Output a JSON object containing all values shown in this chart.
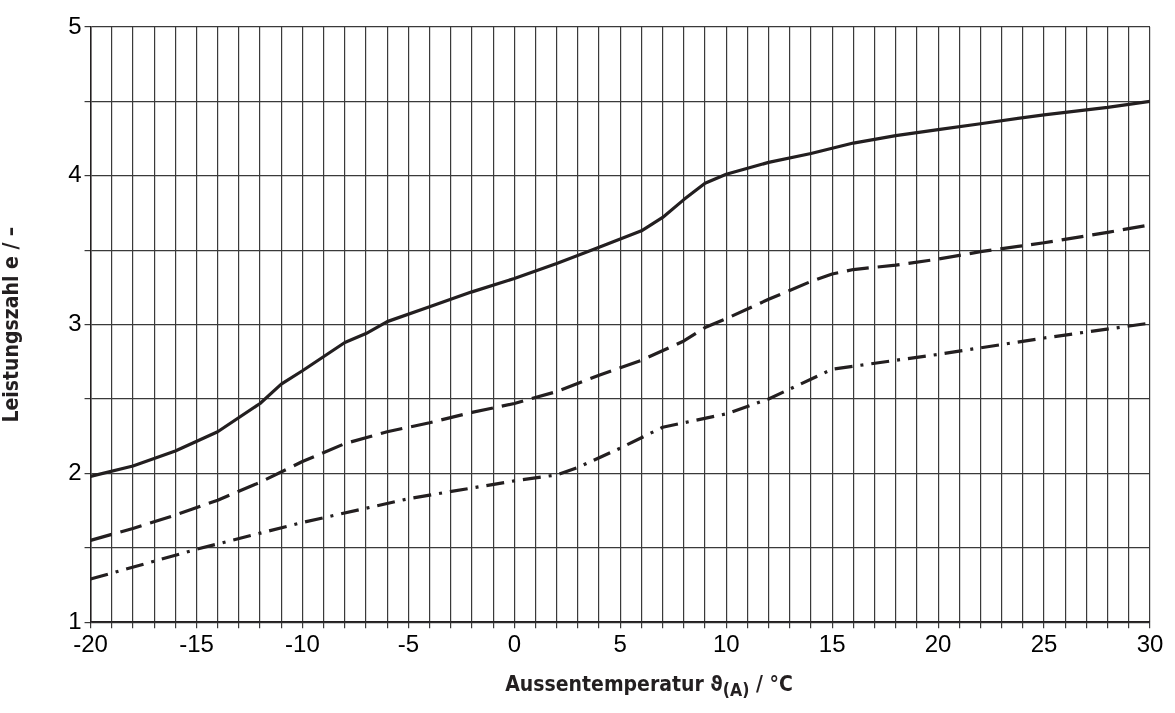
{
  "chart_data": {
    "type": "line",
    "xlabel": "Aussentemperatur ϑ$_{(A)}$ / °C",
    "ylabel": "Leistungszahl e / –",
    "series": [
      {
        "color": "#231f20",
        "line_style": "solid",
        "x": [
          -20,
          -18,
          -16,
          -14,
          -12,
          -11,
          -10,
          -8,
          -7,
          -6,
          -4,
          -2,
          0,
          2,
          4,
          6,
          7,
          8,
          9,
          10,
          12,
          14,
          16,
          18,
          20,
          22,
          25,
          28,
          30
        ],
        "values": [
          1.98,
          2.05,
          2.15,
          2.28,
          2.47,
          2.6,
          2.69,
          2.88,
          2.94,
          3.02,
          3.12,
          3.22,
          3.31,
          3.41,
          3.52,
          3.63,
          3.72,
          3.84,
          3.95,
          4.01,
          4.09,
          4.15,
          4.22,
          4.27,
          4.31,
          4.35,
          4.41,
          4.46,
          4.5
        ]
      },
      {
        "color": "#231f20",
        "line_style": "dashed",
        "x": [
          -20,
          -18,
          -16,
          -14,
          -12,
          -10,
          -8,
          -6,
          -4,
          -2,
          0,
          2,
          4,
          6,
          8,
          9,
          10,
          12,
          14,
          15,
          16,
          18,
          20,
          22,
          25,
          28,
          30
        ],
        "values": [
          1.55,
          1.63,
          1.72,
          1.82,
          1.94,
          2.08,
          2.2,
          2.28,
          2.34,
          2.41,
          2.47,
          2.55,
          2.66,
          2.76,
          2.89,
          2.98,
          3.04,
          3.17,
          3.29,
          3.34,
          3.37,
          3.4,
          3.44,
          3.49,
          3.55,
          3.62,
          3.67
        ]
      },
      {
        "color": "#231f20",
        "line_style": "dashdot",
        "x": [
          -20,
          -15,
          -10,
          -5,
          0,
          2,
          3,
          5,
          7,
          10,
          12,
          15,
          20,
          25,
          30
        ],
        "values": [
          1.29,
          1.49,
          1.67,
          1.83,
          1.95,
          1.99,
          2.04,
          2.17,
          2.31,
          2.4,
          2.5,
          2.7,
          2.8,
          2.91,
          3.01
        ]
      }
    ],
    "xlim": [
      -20,
      30
    ],
    "xticks": [
      -20,
      {
        "value": -19,
        "label": null
      },
      {
        "value": -18,
        "label": null
      },
      {
        "value": -17,
        "label": null
      },
      {
        "value": -16,
        "label": null
      },
      -15,
      {
        "value": -14,
        "label": null
      },
      {
        "value": -13,
        "label": null
      },
      {
        "value": -12,
        "label": null
      },
      {
        "value": -11,
        "label": null
      },
      -10,
      {
        "value": -9,
        "label": null
      },
      {
        "value": -8,
        "label": null
      },
      {
        "value": -7,
        "label": null
      },
      {
        "value": -6,
        "label": null
      },
      -5,
      {
        "value": -4,
        "label": null
      },
      {
        "value": -3,
        "label": null
      },
      {
        "value": -2,
        "label": null
      },
      {
        "value": -1,
        "label": null
      },
      0,
      {
        "value": 1,
        "label": null
      },
      {
        "value": 2,
        "label": null
      },
      {
        "value": 3,
        "label": null
      },
      {
        "value": 4,
        "label": null
      },
      5,
      {
        "value": 6,
        "label": null
      },
      {
        "value": 7,
        "label": null
      },
      {
        "value": 8,
        "label": null
      },
      {
        "value": 9,
        "label": null
      },
      10,
      {
        "value": 11,
        "label": null
      },
      {
        "value": 12,
        "label": null
      },
      {
        "value": 13,
        "label": null
      },
      {
        "value": 14,
        "label": null
      },
      15,
      {
        "value": 16,
        "label": null
      },
      {
        "value": 17,
        "label": null
      },
      {
        "value": 18,
        "label": null
      },
      {
        "value": 19,
        "label": null
      },
      20,
      {
        "value": 21,
        "label": null
      },
      {
        "value": 22,
        "label": null
      },
      {
        "value": 23,
        "label": null
      },
      {
        "value": 24,
        "label": null
      },
      25,
      {
        "value": 26,
        "label": null
      },
      {
        "value": 27,
        "label": null
      },
      {
        "value": 28,
        "label": null
      },
      {
        "value": 29,
        "label": null
      },
      30
    ],
    "ylim": [
      1,
      5
    ],
    "yticks": [
      1,
      {
        "value": 1.5,
        "label": null
      },
      2,
      {
        "value": 2.5,
        "label": null
      },
      3,
      {
        "value": 3.5,
        "label": null
      },
      4,
      {
        "value": 4.5,
        "label": null
      },
      5
    ],
    "grid": true,
    "legend": false,
    "marker": "none"
  }
}
